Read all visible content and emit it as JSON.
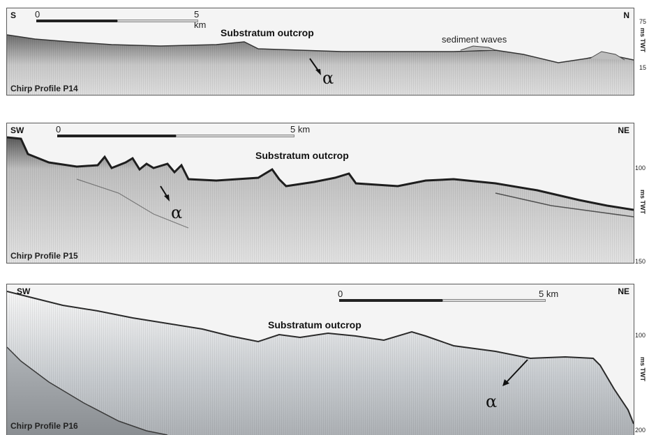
{
  "panels": {
    "p14": {
      "dir_left": "S",
      "dir_right": "N",
      "title": "Substratum outcrop",
      "extra_label": "sediment waves",
      "alpha": "α",
      "profile": "Chirp Profile P14",
      "scale_start": "0",
      "scale_end": "5 km",
      "axis_ticks": [
        "75",
        "15"
      ],
      "axis_unit": "ms TWT"
    },
    "p15": {
      "dir_left": "SW",
      "dir_right": "NE",
      "title": "Substratum outcrop",
      "alpha": "α",
      "profile": "Chirp Profile P15",
      "scale_start": "0",
      "scale_end": "5 km",
      "axis_ticks": [
        "100",
        "150"
      ],
      "axis_unit": "ms TWT"
    },
    "p16": {
      "dir_left": "SW",
      "dir_right": "NE",
      "title": "Substratum outcrop",
      "alpha": "α",
      "profile": "Chirp Profile P16",
      "scale_start": "0",
      "scale_end": "5 km",
      "axis_ticks": [
        "100",
        "200"
      ],
      "axis_unit": "ms TWT"
    }
  }
}
